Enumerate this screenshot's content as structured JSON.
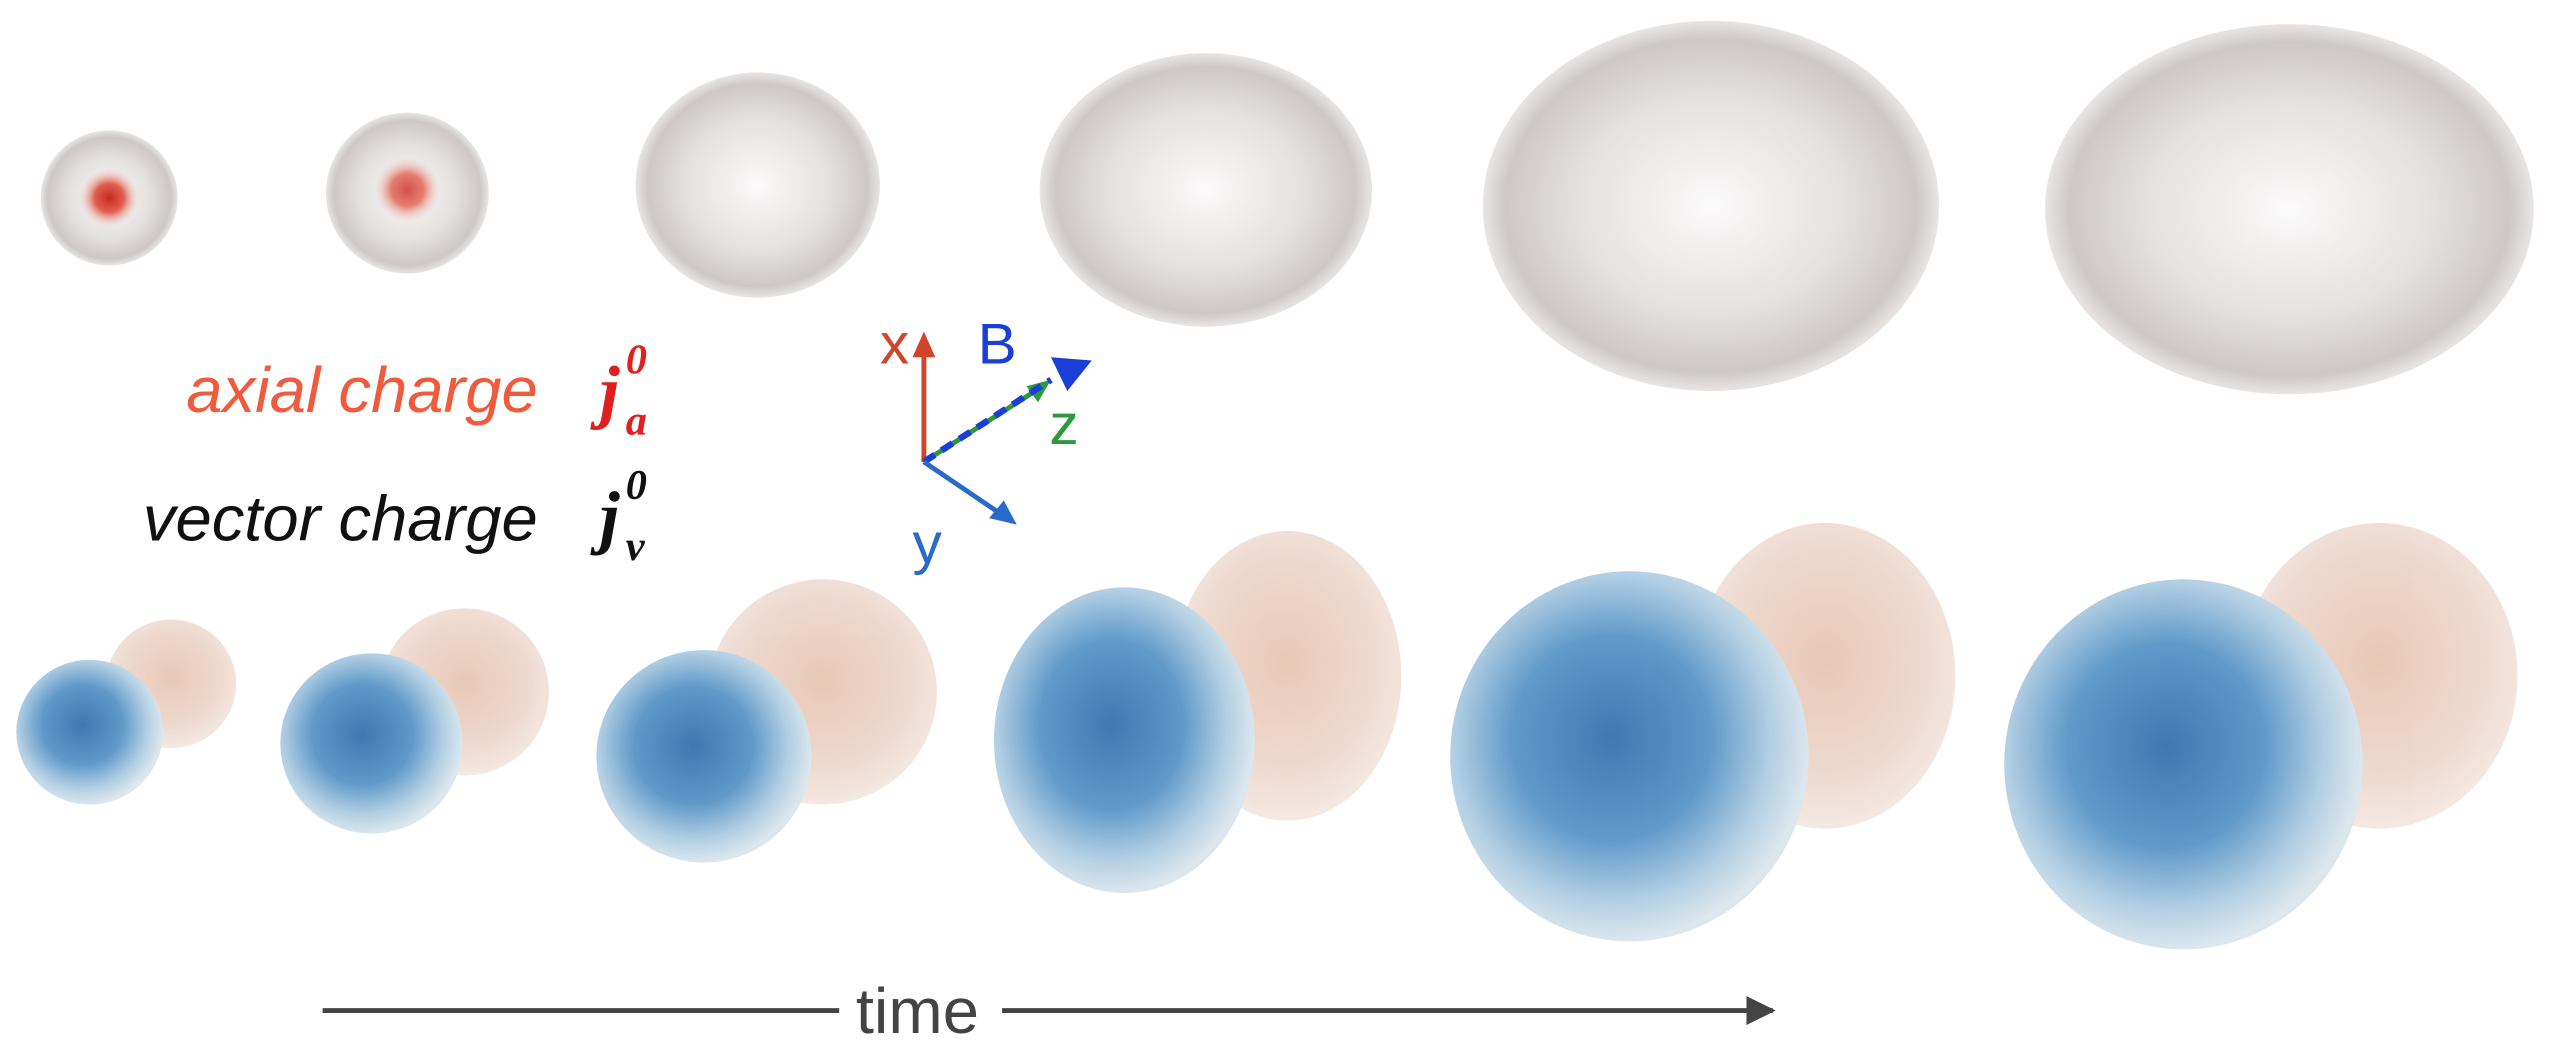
{
  "legend": {
    "axial": {
      "label": "axial charge",
      "symbol": "j",
      "subscript": "a",
      "superscript": "0"
    },
    "vector": {
      "label": "vector charge",
      "symbol": "j",
      "subscript": "v",
      "superscript": "0"
    }
  },
  "axes": {
    "x": "x",
    "B": "B",
    "z": "z",
    "y": "y"
  },
  "time_arrow": {
    "label": "time"
  }
}
